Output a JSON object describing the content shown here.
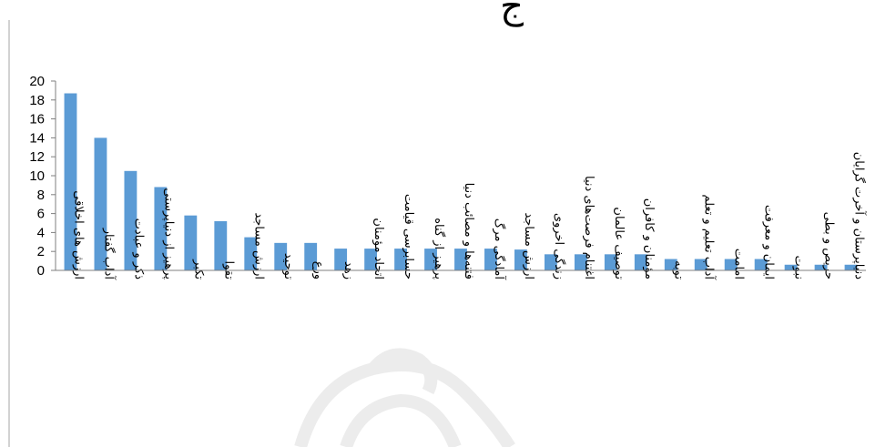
{
  "page_glyph": "ج",
  "chart_data": {
    "type": "bar",
    "title": "",
    "xlabel": "",
    "ylabel": "",
    "ylim": [
      0,
      20
    ],
    "ytick_step": 2,
    "yticks": [
      "0",
      "2",
      "4",
      "6",
      "8",
      "10",
      "12",
      "14",
      "16",
      "18",
      "20"
    ],
    "grid": false,
    "legend": "none",
    "bar_color": "#5b9bd5",
    "categories": [
      "ارزش های اخلاقی",
      "آداب گفتار",
      "ذکر و عبادت",
      "پرهیز از دنیاپرستی",
      "تکبر",
      "تقوا",
      "ارزش مساجد",
      "توحید",
      "ورع",
      "زهد",
      "اتحاد مؤمنان",
      "حسابرسی قیامت",
      "پرهیز از گناه",
      "فتنه‌ها و مصائب دنیا",
      "آمادگی مرگ",
      "ارزش مساجد",
      "زندگی اخروی",
      "اغتنام فرصت‌های دنیا",
      "توصیف عالمان",
      "مؤمنان و کافران",
      "توبه",
      "آداب تعلیم و تعلم",
      "امامت",
      "ایمان و معرفت",
      "نبوت",
      "حریص و بطی",
      "دنیاپرستان و آخرت گرایان"
    ],
    "values": [
      18.7,
      14.0,
      10.5,
      8.8,
      5.8,
      5.2,
      3.5,
      2.9,
      2.9,
      2.3,
      2.3,
      2.3,
      2.3,
      2.3,
      2.3,
      2.2,
      1.7,
      1.7,
      1.7,
      1.7,
      1.2,
      1.2,
      1.2,
      1.2,
      0.6,
      0.6,
      0.6
    ]
  }
}
